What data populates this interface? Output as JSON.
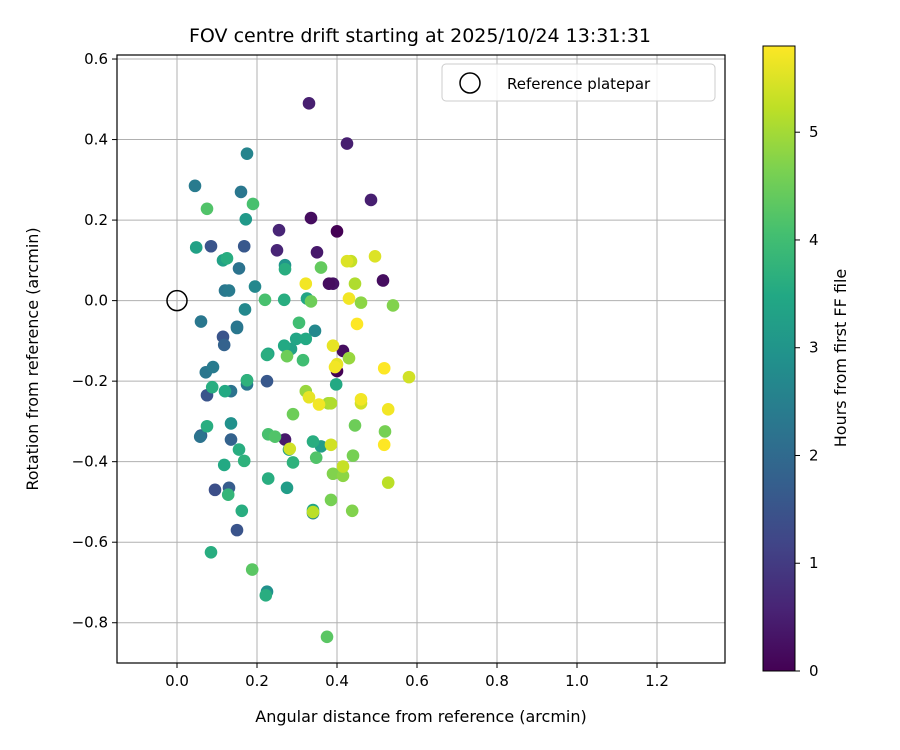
{
  "chart_data": {
    "type": "scatter",
    "title": "FOV centre drift starting at 2025/10/24 13:31:31",
    "xlabel": "Angular distance from reference (arcmin)",
    "ylabel": "Rotation from reference (arcmin)",
    "xlim": [
      -0.15,
      1.37
    ],
    "ylim": [
      -0.9,
      0.61
    ],
    "xticks": [
      0.0,
      0.2,
      0.4,
      0.6,
      0.8,
      1.0,
      1.2
    ],
    "xtick_labels": [
      "0.0",
      "0.2",
      "0.4",
      "0.6",
      "0.8",
      "1.0",
      "1.2"
    ],
    "yticks": [
      0.6,
      0.4,
      0.2,
      0.0,
      -0.2,
      -0.4,
      -0.6,
      -0.8
    ],
    "ytick_labels": [
      "0.6",
      "0.4",
      "0.2",
      "0.0",
      "−0.2",
      "−0.4",
      "−0.6",
      "−0.8"
    ],
    "grid": true,
    "legend": {
      "position": "top-right",
      "entries": [
        "Reference platepar"
      ]
    },
    "reference_point": {
      "x": 0.0,
      "y": 0.0,
      "label": "Reference platepar"
    },
    "colorbar": {
      "label": "Hours from first FF file",
      "colormap": "viridis",
      "range": [
        0,
        5.8
      ],
      "ticks": [
        0,
        1,
        2,
        3,
        4,
        5
      ],
      "tick_labels": [
        "0",
        "1",
        "2",
        "3",
        "4",
        "5"
      ],
      "colors": [
        "#440154",
        "#482475",
        "#414487",
        "#355f8d",
        "#2a788e",
        "#21918c",
        "#22a884",
        "#44bf70",
        "#7ad151",
        "#bddf26",
        "#fde725"
      ]
    },
    "series": [
      {
        "name": "FOV centre",
        "points": [
          {
            "x": 0.33,
            "y": 0.49,
            "h": 0.5
          },
          {
            "x": 0.425,
            "y": 0.39,
            "h": 0.5
          },
          {
            "x": 0.485,
            "y": 0.25,
            "h": 0.5
          },
          {
            "x": 0.335,
            "y": 0.205,
            "h": 0.2
          },
          {
            "x": 0.4,
            "y": 0.172,
            "h": 0.0
          },
          {
            "x": 0.255,
            "y": 0.175,
            "h": 0.6
          },
          {
            "x": 0.25,
            "y": 0.125,
            "h": 0.6
          },
          {
            "x": 0.35,
            "y": 0.12,
            "h": 0.4
          },
          {
            "x": 0.515,
            "y": 0.05,
            "h": 0.2
          },
          {
            "x": 0.39,
            "y": 0.042,
            "h": 0.3
          },
          {
            "x": 0.38,
            "y": 0.042,
            "h": 0.2
          },
          {
            "x": 0.415,
            "y": -0.125,
            "h": 0.2
          },
          {
            "x": 0.4,
            "y": -0.175,
            "h": 0.0
          },
          {
            "x": 0.27,
            "y": -0.345,
            "h": 0.4
          },
          {
            "x": 0.085,
            "y": 0.135,
            "h": 1.5
          },
          {
            "x": 0.168,
            "y": 0.135,
            "h": 1.6
          },
          {
            "x": 0.075,
            "y": -0.235,
            "h": 1.5
          },
          {
            "x": 0.095,
            "y": -0.47,
            "h": 1.4
          },
          {
            "x": 0.15,
            "y": -0.57,
            "h": 1.5
          },
          {
            "x": 0.225,
            "y": -0.2,
            "h": 1.6
          },
          {
            "x": 0.115,
            "y": -0.09,
            "h": 1.5
          },
          {
            "x": 0.13,
            "y": -0.465,
            "h": 1.7
          },
          {
            "x": 0.06,
            "y": -0.335,
            "h": 1.6
          },
          {
            "x": 0.135,
            "y": -0.345,
            "h": 1.8
          },
          {
            "x": 0.118,
            "y": -0.11,
            "h": 1.8
          },
          {
            "x": 0.045,
            "y": 0.285,
            "h": 2.4
          },
          {
            "x": 0.16,
            "y": 0.27,
            "h": 2.3
          },
          {
            "x": 0.175,
            "y": 0.365,
            "h": 2.6
          },
          {
            "x": 0.155,
            "y": 0.08,
            "h": 2.2
          },
          {
            "x": 0.12,
            "y": 0.025,
            "h": 2.3
          },
          {
            "x": 0.13,
            "y": 0.025,
            "h": 2.4
          },
          {
            "x": 0.06,
            "y": -0.052,
            "h": 2.3
          },
          {
            "x": 0.15,
            "y": -0.065,
            "h": 2.2
          },
          {
            "x": 0.15,
            "y": -0.068,
            "h": 2.3
          },
          {
            "x": 0.072,
            "y": -0.178,
            "h": 2.3
          },
          {
            "x": 0.09,
            "y": -0.165,
            "h": 2.4
          },
          {
            "x": 0.135,
            "y": -0.225,
            "h": 2.2
          },
          {
            "x": 0.175,
            "y": -0.208,
            "h": 2.3
          },
          {
            "x": 0.175,
            "y": -0.198,
            "h": 2.5
          },
          {
            "x": 0.058,
            "y": -0.338,
            "h": 2.2
          },
          {
            "x": 0.17,
            "y": -0.022,
            "h": 2.7
          },
          {
            "x": 0.195,
            "y": 0.035,
            "h": 2.7
          },
          {
            "x": 0.345,
            "y": -0.075,
            "h": 2.7
          },
          {
            "x": 0.225,
            "y": -0.723,
            "h": 2.9
          },
          {
            "x": 0.34,
            "y": -0.528,
            "h": 2.7
          },
          {
            "x": 0.135,
            "y": -0.305,
            "h": 2.9
          },
          {
            "x": 0.27,
            "y": 0.088,
            "h": 3.0
          },
          {
            "x": 0.172,
            "y": 0.202,
            "h": 3.1
          },
          {
            "x": 0.048,
            "y": 0.132,
            "h": 3.3
          },
          {
            "x": 0.115,
            "y": 0.1,
            "h": 3.3
          },
          {
            "x": 0.12,
            "y": -0.225,
            "h": 3.5
          },
          {
            "x": 0.285,
            "y": -0.12,
            "h": 3.3
          },
          {
            "x": 0.28,
            "y": -0.37,
            "h": 3.3
          },
          {
            "x": 0.36,
            "y": -0.362,
            "h": 3.2
          },
          {
            "x": 0.275,
            "y": -0.465,
            "h": 3.2
          },
          {
            "x": 0.125,
            "y": 0.105,
            "h": 3.6
          },
          {
            "x": 0.27,
            "y": 0.078,
            "h": 3.6
          },
          {
            "x": 0.268,
            "y": 0.002,
            "h": 3.6
          },
          {
            "x": 0.325,
            "y": 0.005,
            "h": 3.4
          },
          {
            "x": 0.298,
            "y": -0.095,
            "h": 3.4
          },
          {
            "x": 0.322,
            "y": -0.095,
            "h": 3.5
          },
          {
            "x": 0.268,
            "y": -0.112,
            "h": 3.5
          },
          {
            "x": 0.228,
            "y": -0.132,
            "h": 3.4
          },
          {
            "x": 0.225,
            "y": -0.135,
            "h": 3.6
          },
          {
            "x": 0.075,
            "y": -0.312,
            "h": 3.6
          },
          {
            "x": 0.088,
            "y": -0.215,
            "h": 3.6
          },
          {
            "x": 0.175,
            "y": -0.198,
            "h": 3.7
          },
          {
            "x": 0.118,
            "y": -0.408,
            "h": 3.5
          },
          {
            "x": 0.155,
            "y": -0.37,
            "h": 3.6
          },
          {
            "x": 0.168,
            "y": -0.398,
            "h": 3.7
          },
          {
            "x": 0.228,
            "y": -0.442,
            "h": 3.6
          },
          {
            "x": 0.34,
            "y": -0.35,
            "h": 3.6
          },
          {
            "x": 0.398,
            "y": -0.208,
            "h": 3.5
          },
          {
            "x": 0.162,
            "y": -0.522,
            "h": 3.6
          },
          {
            "x": 0.085,
            "y": -0.625,
            "h": 3.6
          },
          {
            "x": 0.222,
            "y": -0.732,
            "h": 3.6
          },
          {
            "x": 0.34,
            "y": -0.52,
            "h": 3.4
          },
          {
            "x": 0.29,
            "y": -0.402,
            "h": 3.7
          },
          {
            "x": 0.128,
            "y": -0.482,
            "h": 3.8
          },
          {
            "x": 0.19,
            "y": 0.24,
            "h": 4.1
          },
          {
            "x": 0.075,
            "y": 0.228,
            "h": 4.2
          },
          {
            "x": 0.22,
            "y": 0.002,
            "h": 4.1
          },
          {
            "x": 0.305,
            "y": -0.055,
            "h": 4.0
          },
          {
            "x": 0.315,
            "y": -0.148,
            "h": 4.0
          },
          {
            "x": 0.228,
            "y": -0.332,
            "h": 4.1
          },
          {
            "x": 0.245,
            "y": -0.338,
            "h": 4.2
          },
          {
            "x": 0.348,
            "y": -0.39,
            "h": 4.2
          },
          {
            "x": 0.375,
            "y": -0.835,
            "h": 4.3
          },
          {
            "x": 0.188,
            "y": -0.668,
            "h": 4.3
          },
          {
            "x": 0.36,
            "y": 0.082,
            "h": 4.4
          },
          {
            "x": 0.335,
            "y": -0.002,
            "h": 4.5
          },
          {
            "x": 0.275,
            "y": -0.138,
            "h": 4.5
          },
          {
            "x": 0.29,
            "y": -0.282,
            "h": 4.5
          },
          {
            "x": 0.385,
            "y": -0.495,
            "h": 4.6
          },
          {
            "x": 0.445,
            "y": -0.31,
            "h": 4.5
          },
          {
            "x": 0.44,
            "y": -0.385,
            "h": 4.6
          },
          {
            "x": 0.438,
            "y": -0.522,
            "h": 4.7
          },
          {
            "x": 0.39,
            "y": -0.43,
            "h": 4.7
          },
          {
            "x": 0.415,
            "y": -0.435,
            "h": 4.8
          },
          {
            "x": 0.54,
            "y": -0.012,
            "h": 4.7
          },
          {
            "x": 0.52,
            "y": -0.325,
            "h": 4.6
          },
          {
            "x": 0.46,
            "y": -0.005,
            "h": 4.8
          },
          {
            "x": 0.322,
            "y": -0.225,
            "h": 4.9
          },
          {
            "x": 0.43,
            "y": -0.143,
            "h": 4.9
          },
          {
            "x": 0.378,
            "y": -0.255,
            "h": 5.0
          },
          {
            "x": 0.385,
            "y": -0.255,
            "h": 5.1
          },
          {
            "x": 0.445,
            "y": 0.042,
            "h": 5.1
          },
          {
            "x": 0.435,
            "y": 0.098,
            "h": 5.3
          },
          {
            "x": 0.415,
            "y": -0.412,
            "h": 5.3
          },
          {
            "x": 0.528,
            "y": -0.452,
            "h": 5.2
          },
          {
            "x": 0.34,
            "y": -0.525,
            "h": 5.2
          },
          {
            "x": 0.282,
            "y": -0.368,
            "h": 5.4
          },
          {
            "x": 0.385,
            "y": -0.358,
            "h": 5.4
          },
          {
            "x": 0.46,
            "y": -0.255,
            "h": 5.4
          },
          {
            "x": 0.58,
            "y": -0.19,
            "h": 5.4
          },
          {
            "x": 0.495,
            "y": 0.11,
            "h": 5.5
          },
          {
            "x": 0.425,
            "y": 0.098,
            "h": 5.5
          },
          {
            "x": 0.39,
            "y": -0.112,
            "h": 5.6
          },
          {
            "x": 0.4,
            "y": -0.158,
            "h": 5.6
          },
          {
            "x": 0.395,
            "y": -0.165,
            "h": 5.7
          },
          {
            "x": 0.33,
            "y": -0.24,
            "h": 5.6
          },
          {
            "x": 0.355,
            "y": -0.258,
            "h": 5.7
          },
          {
            "x": 0.46,
            "y": -0.245,
            "h": 5.7
          },
          {
            "x": 0.528,
            "y": -0.27,
            "h": 5.7
          },
          {
            "x": 0.518,
            "y": -0.358,
            "h": 5.8
          },
          {
            "x": 0.518,
            "y": -0.168,
            "h": 5.8
          },
          {
            "x": 0.45,
            "y": -0.058,
            "h": 5.8
          },
          {
            "x": 0.43,
            "y": 0.005,
            "h": 5.7
          },
          {
            "x": 0.322,
            "y": 0.042,
            "h": 5.7
          }
        ]
      }
    ]
  }
}
